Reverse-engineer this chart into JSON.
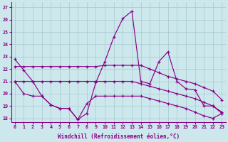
{
  "background_color": "#cce8ec",
  "line_color": "#880088",
  "ylim": [
    17.7,
    27.4
  ],
  "xlim": [
    -0.4,
    23.4
  ],
  "yticks": [
    18,
    19,
    20,
    21,
    22,
    23,
    24,
    25,
    26,
    27
  ],
  "xticks": [
    0,
    1,
    2,
    3,
    4,
    5,
    6,
    7,
    8,
    9,
    10,
    11,
    12,
    13,
    14,
    15,
    16,
    17,
    18,
    19,
    20,
    21,
    22,
    23
  ],
  "xlabel": "Windchill (Refroidissement éolien,°C)",
  "line1": [
    22.8,
    21.9,
    21.0,
    19.8,
    19.1,
    18.8,
    18.8,
    17.9,
    18.4,
    20.9,
    22.6,
    24.6,
    26.1,
    26.7,
    21.0,
    20.8,
    22.6,
    23.4,
    21.0,
    20.4,
    20.3,
    19.0,
    19.0,
    18.4
  ],
  "line2": [
    22.2,
    22.2,
    22.2,
    22.2,
    22.2,
    22.2,
    22.2,
    22.2,
    22.2,
    22.2,
    22.3,
    22.3,
    22.3,
    22.3,
    22.3,
    22.0,
    21.7,
    21.4,
    21.2,
    21.0,
    20.8,
    20.5,
    20.2,
    19.5
  ],
  "line3": [
    21.0,
    21.0,
    21.0,
    21.0,
    21.0,
    21.0,
    21.0,
    21.0,
    21.0,
    21.0,
    21.0,
    21.0,
    21.0,
    21.0,
    20.8,
    20.6,
    20.4,
    20.2,
    20.0,
    19.8,
    19.6,
    19.3,
    19.0,
    18.5
  ],
  "line4": [
    21.0,
    20.0,
    19.8,
    19.8,
    19.1,
    18.8,
    18.8,
    17.9,
    19.2,
    19.8,
    19.8,
    19.8,
    19.8,
    19.8,
    19.8,
    19.6,
    19.4,
    19.2,
    19.0,
    18.8,
    18.5,
    18.2,
    18.0,
    18.4
  ]
}
